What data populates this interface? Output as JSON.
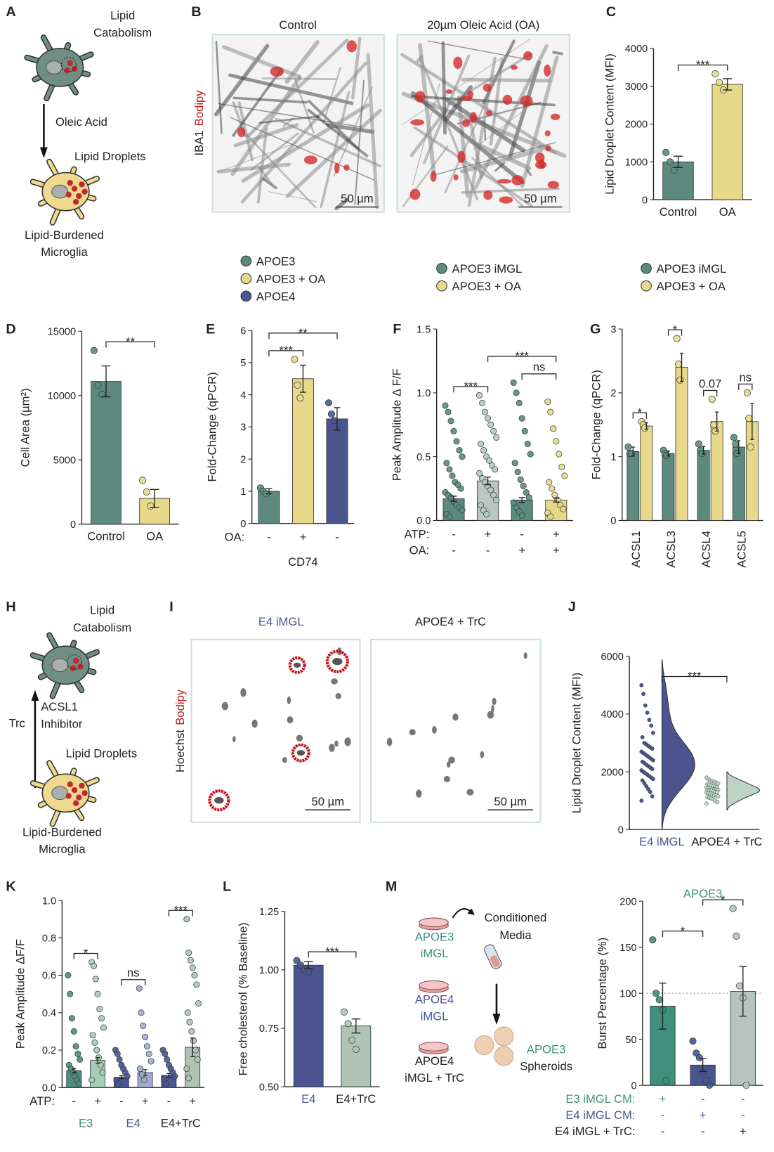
{
  "diagrams": {
    "A": {
      "label": "A",
      "top_text": [
        "Lipid",
        "Catabolism"
      ],
      "arrow_text": "Oleic Acid",
      "droplet_text": "Lipid Droplets",
      "bottom_text": [
        "Lipid-Burdened",
        "Microglia"
      ]
    },
    "B": {
      "label": "B",
      "ylabel": [
        "IBA1",
        "Bodipy"
      ],
      "titles": [
        "Control",
        "20µm Oleic Acid (OA)"
      ],
      "scalebars": [
        "50 µm",
        "50 µm"
      ]
    },
    "H": {
      "label": "H",
      "top_text": [
        "Lipid",
        "Catabolism"
      ],
      "arrow_text": "Trc",
      "inhibitor_text": [
        "ACSL1",
        "Inhibitor"
      ],
      "droplet_text": "Lipid Droplets",
      "bottom_text": [
        "Lipid-Burdened",
        "Microglia"
      ]
    },
    "I": {
      "label": "I",
      "ylabel": [
        "Hoechst",
        "Bodipy"
      ],
      "titles": [
        "E4 iMGL",
        "APOE4 + TrC"
      ],
      "title_colors": [
        "#4a5590",
        "#222222"
      ],
      "scalebars": [
        "50 µm",
        "50 µm"
      ]
    },
    "M": {
      "label": "M",
      "media": [
        "Conditioned",
        "Media"
      ],
      "sources": [
        [
          "APOE3",
          "iMGL"
        ],
        [
          "APOE4",
          "iMGL"
        ],
        [
          "APOE4",
          "iMGL + TrC"
        ]
      ],
      "source_colors": [
        "#3f8f7a",
        "#4a5590",
        "#222222"
      ],
      "target": [
        "APOE3",
        "Spheroids"
      ],
      "target_colors": [
        "#3f8f7a",
        "#222222"
      ]
    }
  },
  "chart_data": [
    {
      "type": "bar",
      "label": "C",
      "ylabel": "Lipid Droplet Content (MFI)",
      "ylim": [
        0,
        4000
      ],
      "yticks": [
        0,
        1000,
        2000,
        3000,
        4000
      ],
      "categories": [
        "Control",
        "OA"
      ],
      "series": [
        {
          "colors": [
            "#5d8a7e",
            "#e8d98a"
          ],
          "values": [
            1000,
            3050
          ],
          "errors": [
            150,
            150
          ],
          "points": [
            [
              1250,
              1000,
              780
            ],
            [
              3330,
              3100,
              2900
            ]
          ]
        }
      ],
      "brackets": [
        {
          "from": 0,
          "to": 1,
          "label": "***"
        }
      ]
    },
    {
      "type": "bar",
      "label": "D",
      "ylabel": "Cell Area (µm²)",
      "ylim": [
        0,
        15000
      ],
      "yticks": [
        0,
        5000,
        10000,
        15000
      ],
      "categories": [
        "Control",
        "OA"
      ],
      "series": [
        {
          "colors": [
            "#5d8a7e",
            "#e8d98a"
          ],
          "values": [
            11100,
            2000
          ],
          "errors": [
            1200,
            700
          ],
          "points": [
            [
              13500,
              10800,
              10100
            ],
            [
              3400,
              2500,
              1400
            ]
          ]
        }
      ],
      "brackets": [
        {
          "from": 0,
          "to": 1,
          "label": "**"
        }
      ]
    },
    {
      "type": "bar",
      "label": "E",
      "ylabel": "Fold-Change (qPCR)",
      "ylim": [
        0,
        6
      ],
      "yticks": [
        0,
        1,
        2,
        3,
        4,
        5,
        6
      ],
      "legend": [
        {
          "name": "APOE3",
          "color": "#5d8a7e"
        },
        {
          "name": "APOE3 + OA",
          "color": "#e8d98a"
        },
        {
          "name": "APOE4",
          "color": "#4a5590"
        }
      ],
      "rows": [
        {
          "name": "OA:",
          "values": [
            "-",
            "+",
            "-"
          ]
        }
      ],
      "xlabel": "CD74",
      "series": [
        {
          "colors": [
            "#5d8a7e",
            "#e8d98a",
            "#4a5590"
          ],
          "values": [
            1.0,
            4.5,
            3.25
          ],
          "errors": [
            0.08,
            0.42,
            0.35
          ],
          "points": [
            [
              1.1,
              1.0,
              0.92
            ],
            [
              5.1,
              4.3,
              3.9
            ],
            [
              3.75,
              3.4,
              3.2
            ]
          ]
        }
      ],
      "brackets": [
        {
          "from": 0,
          "to": 1,
          "label": "***"
        },
        {
          "from": 0,
          "to": 2,
          "label": "**"
        }
      ]
    },
    {
      "type": "bar",
      "label": "F",
      "ylabel": "Peak Amplitude  Δ F/F",
      "ylim": [
        0,
        1.5
      ],
      "yticks": [
        {
          "value": 0,
          "label": "0.0"
        },
        0.5,
        {
          "value": 1,
          "label": "1.0"
        },
        1.5
      ],
      "legend": [
        {
          "name": "APOE3 iMGL",
          "color": "#5d8a7e"
        },
        {
          "name": "APOE3 + OA",
          "color": "#e8d98a"
        }
      ],
      "rows": [
        {
          "name": "ATP:",
          "values": [
            "-",
            "+",
            "-",
            "+"
          ]
        },
        {
          "name": "OA:",
          "values": [
            "-",
            "-",
            "+",
            "+"
          ]
        }
      ],
      "series": [
        {
          "colors": [
            "#5d8a7e",
            "#b9c6c2",
            "#5d8a7e",
            "#e8d98a"
          ],
          "values": [
            0.17,
            0.31,
            0.16,
            0.16
          ],
          "errors": [
            0.02,
            0.03,
            0.02,
            0.015
          ],
          "points": [
            [
              0.9,
              0.85,
              0.78,
              0.7,
              0.62,
              0.55,
              0.5,
              0.45,
              0.4,
              0.35,
              0.3,
              0.28,
              0.25,
              0.22,
              0.2,
              0.18,
              0.15,
              0.12,
              0.1,
              0.08,
              0.05,
              0.03
            ],
            [
              0.98,
              0.92,
              0.85,
              0.8,
              0.75,
              0.7,
              0.65,
              0.6,
              0.55,
              0.5,
              0.47,
              0.43,
              0.4,
              0.37,
              0.33,
              0.3,
              0.27,
              0.24,
              0.2,
              0.16,
              0.12,
              0.08,
              0.05
            ],
            [
              1.08,
              1.0,
              0.92,
              0.8,
              0.7,
              0.6,
              0.52,
              0.45,
              0.38,
              0.32,
              0.27,
              0.22,
              0.18,
              0.14,
              0.1,
              0.07,
              0.04
            ],
            [
              0.93,
              0.85,
              0.72,
              0.62,
              0.52,
              0.42,
              0.35,
              0.3,
              0.25,
              0.2,
              0.16,
              0.12,
              0.09,
              0.06,
              0.03
            ]
          ]
        }
      ],
      "brackets": [
        {
          "from": 0,
          "to": 1,
          "label": "***"
        },
        {
          "from": 2,
          "to": 3,
          "label": "ns"
        },
        {
          "from": 1,
          "to": 3,
          "label": "***"
        }
      ]
    },
    {
      "type": "bar",
      "label": "G",
      "ylabel": "Fold-Change (qPCR)",
      "ylim": [
        0,
        3
      ],
      "yticks": [
        0,
        1,
        2,
        3
      ],
      "categories": [
        "ACSL1",
        "ACSL3",
        "ACSL4",
        "ACSL5"
      ],
      "rotate_categories": true,
      "series": [
        {
          "name": "APOE3 iMGL",
          "color": "#5d8a7e",
          "values": [
            1.08,
            1.05,
            1.1,
            1.15
          ],
          "errors": [
            0.07,
            0.04,
            0.06,
            0.1
          ],
          "points": [
            [
              1.15,
              1.05,
              1.05
            ],
            [
              1.1,
              1.05,
              1.02
            ],
            [
              1.2,
              1.1,
              1.05
            ],
            [
              1.3,
              1.2,
              1.05
            ]
          ]
        },
        {
          "name": "APOE3 + OA",
          "color": "#e8d98a",
          "values": [
            1.48,
            2.4,
            1.55,
            1.55
          ],
          "errors": [
            0.05,
            0.22,
            0.15,
            0.28
          ],
          "points": [
            [
              1.55,
              1.5,
              1.45
            ],
            [
              2.85,
              2.45,
              2.2
            ],
            [
              1.9,
              1.5,
              1.4
            ],
            [
              2.0,
              1.6,
              1.15
            ]
          ]
        }
      ],
      "brackets": [
        {
          "from": 0,
          "to": 1,
          "label": "*"
        },
        {
          "from": 2,
          "to": 3,
          "label": "*"
        },
        {
          "from": 4,
          "to": 5,
          "label": "0.07"
        },
        {
          "from": 6,
          "to": 7,
          "label": "ns"
        }
      ]
    },
    {
      "type": "raincloud",
      "label": "J",
      "ylabel": "Lipid Droplet Content (MFI)",
      "ylim": [
        0,
        6000
      ],
      "yticks": [
        0,
        2000,
        4000,
        6000
      ],
      "categories": [
        "E4 iMGL",
        "APOE4 + TrC"
      ],
      "category_colors": [
        "#4a5590",
        "#222222"
      ],
      "series": [
        {
          "colors": [
            "#4a5590",
            "#bcd3c6"
          ],
          "points": [
            [
              5000,
              4700,
              4300,
              4050,
              3800,
              3600,
              3350,
              3200,
              3000,
              2950,
              2900,
              2850,
              2800,
              2700,
              2650,
              2600,
              2550,
              2500,
              2450,
              2400,
              2350,
              2300,
              2250,
              2200,
              2150,
              2100,
              2050,
              2000,
              1950,
              1900,
              1850,
              1800,
              1750,
              1700,
              1600,
              1500,
              1400,
              1300,
              1150,
              1000
            ],
            [
              1800,
              1750,
              1700,
              1680,
              1650,
              1620,
              1600,
              1580,
              1550,
              1530,
              1500,
              1480,
              1460,
              1450,
              1440,
              1420,
              1400,
              1390,
              1380,
              1370,
              1360,
              1350,
              1340,
              1320,
              1300,
              1290,
              1280,
              1260,
              1250,
              1230,
              1200,
              1180,
              1150,
              1120,
              1100,
              1080,
              1050,
              1000,
              950,
              900
            ]
          ]
        }
      ],
      "brackets": [
        {
          "from": 0,
          "to": 1,
          "label": "***"
        }
      ]
    },
    {
      "type": "bar",
      "label": "K",
      "ylabel": "Peak Amplitude ΔF/F",
      "ylim": [
        0,
        1
      ],
      "yticks": [
        {
          "value": 0,
          "label": "0.0"
        },
        0.2,
        0.4,
        0.6,
        0.8,
        {
          "value": 1,
          "label": "1.0"
        }
      ],
      "rows": [
        {
          "name": "ATP:",
          "values": [
            "-",
            "+",
            "-",
            "+",
            "-",
            "+"
          ]
        }
      ],
      "group_labels": [
        "E3",
        "E4",
        "E4+TrC"
      ],
      "group_label_colors": [
        "#3f8f7a",
        "#4a5590",
        "#222222"
      ],
      "series": [
        {
          "colors": [
            "#4f8c7e",
            "#a9cbb9",
            "#4a5590",
            "#a3aad0",
            "#4a5590",
            "#aec4b6"
          ],
          "values": [
            0.09,
            0.145,
            0.055,
            0.08,
            0.065,
            0.215
          ],
          "errors": [
            0.01,
            0.015,
            0.008,
            0.015,
            0.01,
            0.05
          ],
          "points": [
            [
              0.6,
              0.5,
              0.37,
              0.3,
              0.22,
              0.18,
              0.15,
              0.12,
              0.1,
              0.08,
              0.06,
              0.04,
              0.02
            ],
            [
              0.67,
              0.65,
              0.58,
              0.5,
              0.42,
              0.37,
              0.32,
              0.28,
              0.24,
              0.2,
              0.16,
              0.12,
              0.08,
              0.04
            ],
            [
              0.2,
              0.18,
              0.15,
              0.12,
              0.1,
              0.08,
              0.06,
              0.04,
              0.02
            ],
            [
              0.53,
              0.4,
              0.33,
              0.27,
              0.22,
              0.18,
              0.14,
              0.1,
              0.07,
              0.04
            ],
            [
              0.2,
              0.18,
              0.15,
              0.12,
              0.1,
              0.08,
              0.06,
              0.04,
              0.02
            ],
            [
              0.9,
              0.72,
              0.68,
              0.64,
              0.6,
              0.55,
              0.45,
              0.4,
              0.35,
              0.3,
              0.25,
              0.2,
              0.15,
              0.1,
              0.05
            ]
          ]
        }
      ],
      "brackets": [
        {
          "from": 0,
          "to": 1,
          "label": "*"
        },
        {
          "from": 2,
          "to": 3,
          "label": "ns"
        },
        {
          "from": 4,
          "to": 5,
          "label": "***"
        }
      ]
    },
    {
      "type": "bar",
      "label": "L",
      "ylabel": "Free cholesterol (% Baseline)",
      "ylim": [
        0.5,
        1.25
      ],
      "yticks": [
        {
          "value": 0.5,
          "label": "0.50"
        },
        0.75,
        {
          "value": 1,
          "label": "1.00"
        },
        1.25
      ],
      "categories": [
        "E4",
        "E4+TrC"
      ],
      "category_colors": [
        "#4a5590",
        "#222222"
      ],
      "series": [
        {
          "colors": [
            "#4a5590",
            "#aec4b6"
          ],
          "values": [
            1.02,
            0.76
          ],
          "errors": [
            0.015,
            0.03
          ],
          "points": [
            [
              1.04,
              1.02,
              1.0,
              0.99
            ],
            [
              0.82,
              0.77,
              0.7,
              0.66
            ]
          ]
        }
      ],
      "brackets": [
        {
          "from": 0,
          "to": 1,
          "label": "***"
        }
      ]
    },
    {
      "type": "bar",
      "title": "APOE3",
      "title_color": "#3f8f7a",
      "ylabel": "Burst Percentage (%)",
      "ylim": [
        0,
        200
      ],
      "yticks": [
        0,
        50,
        100,
        150,
        200
      ],
      "refline": 100,
      "rows": [
        {
          "name": "E3 iMGL CM:",
          "color": "#3f8f7a",
          "values": [
            "+",
            "-",
            "-"
          ]
        },
        {
          "name": "E4 iMGL CM:",
          "color": "#4a5590",
          "values": [
            "-",
            "+",
            "-"
          ]
        },
        {
          "name": "E4 iMGL + TrC:",
          "color": "#222222",
          "values": [
            "-",
            "-",
            "+"
          ]
        }
      ],
      "series": [
        {
          "colors": [
            "#3f8f7a",
            "#4a5590",
            "#b7c3bf"
          ],
          "values": [
            86,
            22,
            102
          ],
          "errors": [
            25,
            7,
            27
          ],
          "points": [
            [
              158,
              100,
              93,
              82,
              5
            ],
            [
              48,
              35,
              30,
              14,
              5,
              0
            ],
            [
              192,
              162,
              108,
              95,
              0
            ]
          ]
        }
      ],
      "brackets": [
        {
          "from": 0,
          "to": 1,
          "label": "*"
        },
        {
          "from": 1,
          "to": 2,
          "label": "*"
        }
      ]
    }
  ]
}
